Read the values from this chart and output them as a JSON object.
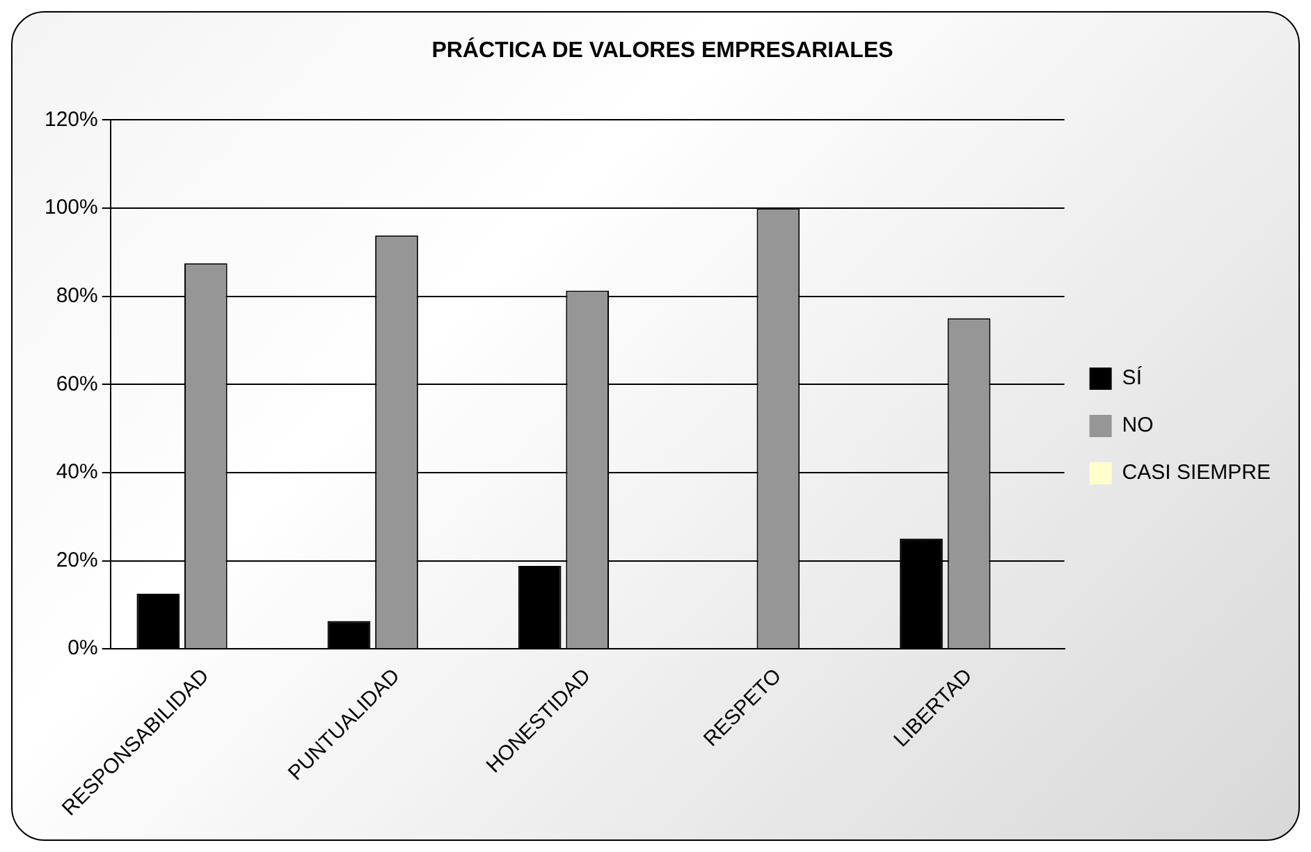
{
  "chart_data": {
    "type": "bar",
    "title": "PRÁCTICA DE VALORES EMPRESARIALES",
    "categories": [
      "RESPONSABILIDAD",
      "PUNTUALIDAD",
      "HONESTIDAD",
      "RESPETO",
      "LIBERTAD"
    ],
    "series": [
      {
        "name": "SÍ",
        "color": "#000000",
        "values": [
          12.5,
          6.3,
          18.8,
          0,
          25
        ]
      },
      {
        "name": "NO",
        "color": "#969696",
        "values": [
          87.5,
          93.8,
          81.3,
          100,
          75
        ]
      },
      {
        "name": "CASI SIEMPRE",
        "color": "#ffffcc",
        "values": [
          0,
          0,
          0,
          0,
          0
        ]
      }
    ],
    "ylim": [
      0,
      120
    ],
    "yticks": [
      {
        "value": 0,
        "label": "0%"
      },
      {
        "value": 20,
        "label": "20%"
      },
      {
        "value": 40,
        "label": "40%"
      },
      {
        "value": 60,
        "label": "60%"
      },
      {
        "value": 80,
        "label": "80%"
      },
      {
        "value": 100,
        "label": "100%"
      },
      {
        "value": 120,
        "label": "120%"
      }
    ],
    "grid": "y",
    "legend": "right"
  }
}
